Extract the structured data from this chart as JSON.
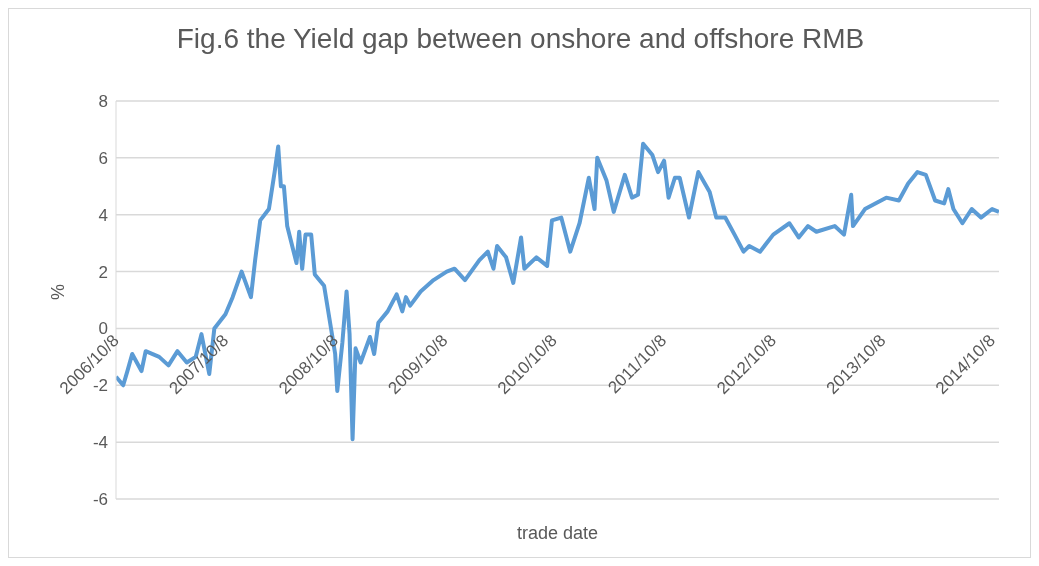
{
  "chart_data": {
    "type": "line",
    "title": "Fig.6 the Yield gap between onshore and offshore RMB",
    "xlabel": "trade date",
    "ylabel": "%",
    "x": [
      "2006-10-08",
      "2006-11-01",
      "2006-11-15",
      "2006-12-01",
      "2007-01-01",
      "2007-01-15",
      "2007-03-01",
      "2007-04-01",
      "2007-05-01",
      "2007-06-01",
      "2007-07-01",
      "2007-07-20",
      "2007-08-15",
      "2007-09-01",
      "2007-10-08",
      "2007-11-01",
      "2007-12-01",
      "2008-01-01",
      "2008-01-15",
      "2008-02-01",
      "2008-03-01",
      "2008-03-20",
      "2008-04-01",
      "2008-04-10",
      "2008-04-20",
      "2008-05-01",
      "2008-06-01",
      "2008-06-10",
      "2008-06-20",
      "2008-07-01",
      "2008-07-20",
      "2008-08-01",
      "2008-09-01",
      "2008-10-08",
      "2008-10-15",
      "2008-11-01",
      "2008-11-15",
      "2008-11-25",
      "2008-12-05",
      "2008-12-15",
      "2009-01-01",
      "2009-02-01",
      "2009-02-15",
      "2009-03-01",
      "2009-04-01",
      "2009-05-01",
      "2009-05-20",
      "2009-06-01",
      "2009-06-15",
      "2009-07-20",
      "2009-09-01",
      "2009-10-15",
      "2009-11-10",
      "2009-12-15",
      "2010-02-01",
      "2010-03-01",
      "2010-03-20",
      "2010-04-01",
      "2010-05-01",
      "2010-05-25",
      "2010-06-20",
      "2010-07-01",
      "2010-08-10",
      "2010-09-15",
      "2010-10-01",
      "2010-11-01",
      "2010-12-01",
      "2011-01-01",
      "2011-02-01",
      "2011-02-20",
      "2011-03-01",
      "2011-04-01",
      "2011-04-25",
      "2011-06-01",
      "2011-06-25",
      "2011-07-15",
      "2011-08-01",
      "2011-09-01",
      "2011-09-20",
      "2011-10-10",
      "2011-10-25",
      "2011-11-15",
      "2011-12-01",
      "2012-01-01",
      "2012-02-01",
      "2012-03-10",
      "2012-04-01",
      "2012-05-01",
      "2012-06-01",
      "2012-07-01",
      "2012-07-20",
      "2012-08-25",
      "2012-10-08",
      "2012-12-01",
      "2013-01-01",
      "2013-02-01",
      "2013-03-01",
      "2013-05-01",
      "2013-06-01",
      "2013-06-25",
      "2013-07-01",
      "2013-08-10",
      "2013-10-20",
      "2013-12-01",
      "2014-01-01",
      "2014-02-01",
      "2014-03-01",
      "2014-04-01",
      "2014-05-01",
      "2014-05-15",
      "2014-06-01",
      "2014-07-01",
      "2014-08-01",
      "2014-09-01",
      "2014-10-08",
      "2014-10-31"
    ],
    "series": [
      {
        "color": "#5b9bd5",
        "values": [
          -1.7,
          -2.0,
          -1.5,
          -0.9,
          -1.5,
          -0.8,
          -1.0,
          -1.3,
          -0.8,
          -1.2,
          -1.0,
          -0.2,
          -1.6,
          0.0,
          0.5,
          1.1,
          2.0,
          1.1,
          2.4,
          3.8,
          4.2,
          5.5,
          6.4,
          5.0,
          5.0,
          3.6,
          2.3,
          3.4,
          2.1,
          3.3,
          3.3,
          1.9,
          1.5,
          -0.9,
          -2.2,
          -0.5,
          1.3,
          -0.2,
          -3.9,
          -0.7,
          -1.2,
          -0.3,
          -0.9,
          0.2,
          0.6,
          1.2,
          0.6,
          1.1,
          0.8,
          1.3,
          1.7,
          2.0,
          2.1,
          1.7,
          2.4,
          2.7,
          2.1,
          2.9,
          2.5,
          1.6,
          3.2,
          2.1,
          2.5,
          2.2,
          3.8,
          3.9,
          2.7,
          3.7,
          5.3,
          4.2,
          6.0,
          5.2,
          4.1,
          5.4,
          4.6,
          4.7,
          6.5,
          6.1,
          5.5,
          5.9,
          4.6,
          5.3,
          5.3,
          3.9,
          5.5,
          4.8,
          3.9,
          3.9,
          3.3,
          2.7,
          2.9,
          2.7,
          3.3,
          3.7,
          3.2,
          3.6,
          3.4,
          3.6,
          3.3,
          4.7,
          3.6,
          4.2,
          4.6,
          4.5,
          5.1,
          5.5,
          5.4,
          4.5,
          4.4,
          4.9,
          4.2,
          3.7,
          4.2,
          3.9,
          4.2,
          4.1
        ]
      }
    ],
    "xlim": [
      "2006-10-08",
      "2014-10-31"
    ],
    "xticks": [
      {
        "value": "2006-10-08",
        "label": "2006/10/8"
      },
      {
        "value": "2007-10-08",
        "label": "2007/10/8"
      },
      {
        "value": "2008-10-08",
        "label": "2008/10/8"
      },
      {
        "value": "2009-10-08",
        "label": "2009/10/8"
      },
      {
        "value": "2010-10-08",
        "label": "2010/10/8"
      },
      {
        "value": "2011-10-08",
        "label": "2011/10/8"
      },
      {
        "value": "2012-10-08",
        "label": "2012/10/8"
      },
      {
        "value": "2013-10-08",
        "label": "2013/10/8"
      },
      {
        "value": "2014-10-08",
        "label": "2014/10/8"
      }
    ],
    "ylim": [
      -6,
      8
    ],
    "yticks": [
      -6,
      -4,
      -2,
      0,
      2,
      4,
      6,
      8
    ],
    "grid": "y",
    "legend": false,
    "marker": "none",
    "line_style": "solid"
  }
}
